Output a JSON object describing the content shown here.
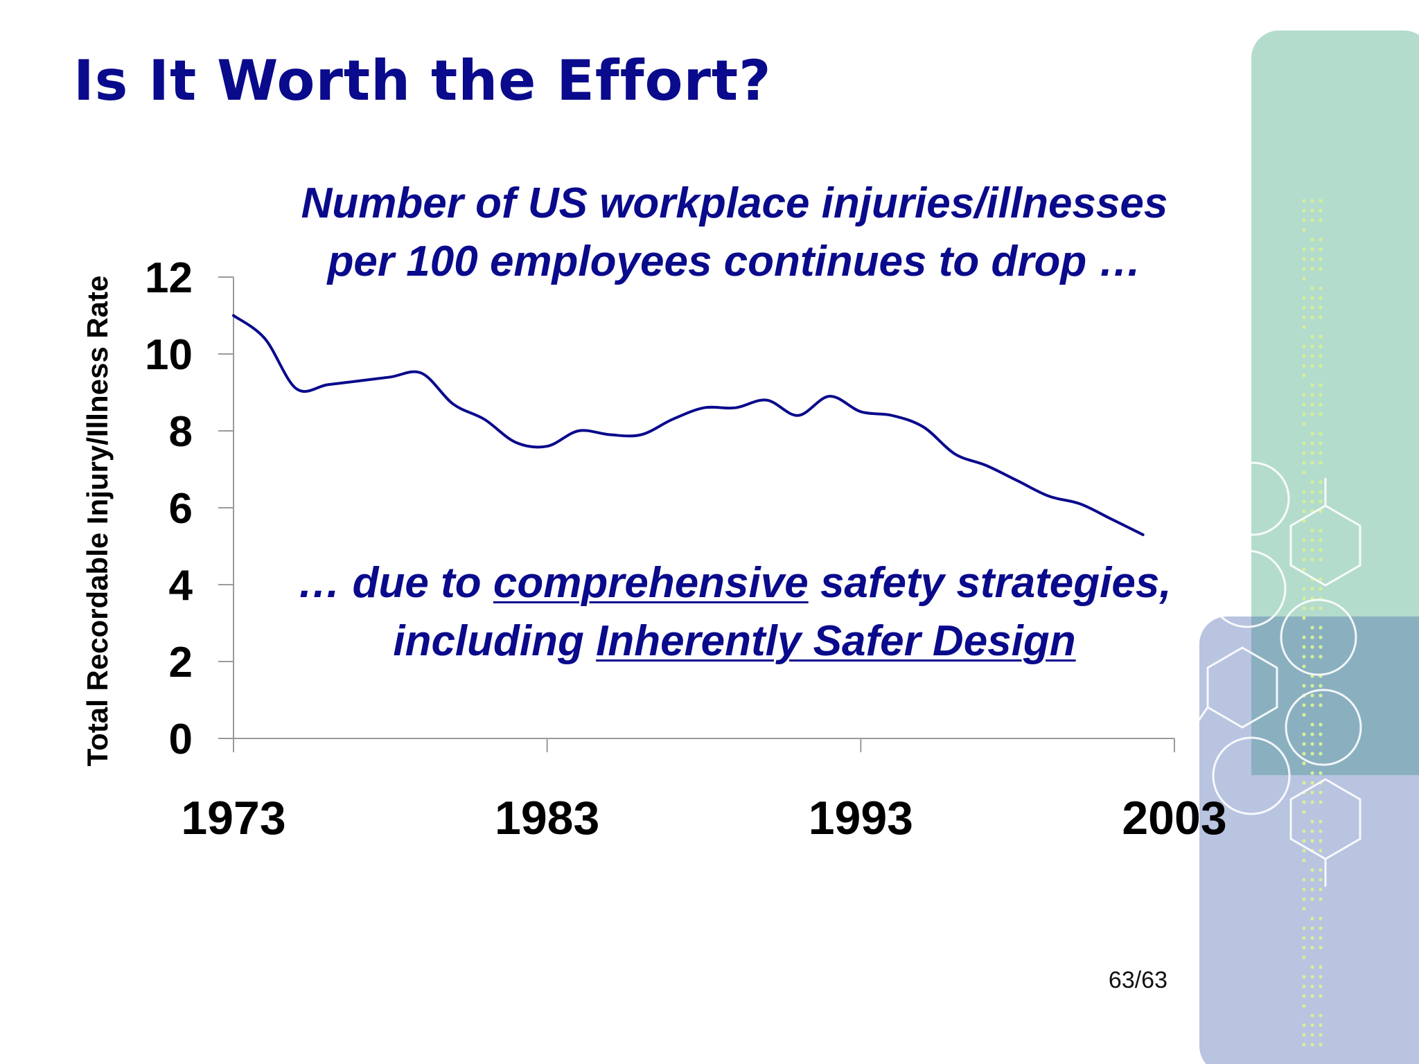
{
  "slide": {
    "title": "Is It Worth the Effort?",
    "headline_line1": "Number of US workplace injuries/illnesses",
    "headline_line2": "per 100 employees continues to drop …",
    "subline_line1_prefix": "… due to ",
    "subline_line1_underlined": "comprehensive",
    "subline_line1_suffix": " safety strategies,",
    "subline_line2_prefix": "including ",
    "subline_line2_underlined": "Inherently Safer Design",
    "page_number": "63/63"
  },
  "colors": {
    "title": "#0a0a8c",
    "series_line": "#0a0a8c",
    "deco_teal": "#b4dccc",
    "deco_blue": "#b8c4e0",
    "deco_overlap": "#8ab0c0"
  },
  "chart_data": {
    "type": "line",
    "title": "",
    "xlabel": "",
    "ylabel": "Total Recordable Injury/Illness Rate",
    "xlim": [
      1973,
      2003
    ],
    "ylim": [
      0,
      12
    ],
    "xticks": [
      1973,
      1983,
      1993,
      2003
    ],
    "yticks": [
      0,
      2,
      4,
      6,
      8,
      10,
      12
    ],
    "grid": false,
    "legend": "none",
    "series": [
      {
        "x": [
          1973,
          1974,
          1975,
          1976,
          1977,
          1978,
          1979,
          1980,
          1981,
          1982,
          1983,
          1984,
          1985,
          1986,
          1987,
          1988,
          1989,
          1990,
          1991,
          1992,
          1993,
          1994,
          1995,
          1996,
          1997,
          1998,
          1999,
          2000,
          2001,
          2002
        ],
        "y": [
          11.0,
          10.4,
          9.1,
          9.2,
          9.3,
          9.4,
          9.5,
          8.7,
          8.3,
          7.7,
          7.6,
          8.0,
          7.9,
          7.9,
          8.3,
          8.6,
          8.6,
          8.8,
          8.4,
          8.9,
          8.5,
          8.4,
          8.1,
          7.4,
          7.1,
          6.7,
          6.3,
          6.1,
          5.7,
          5.3
        ]
      }
    ]
  }
}
